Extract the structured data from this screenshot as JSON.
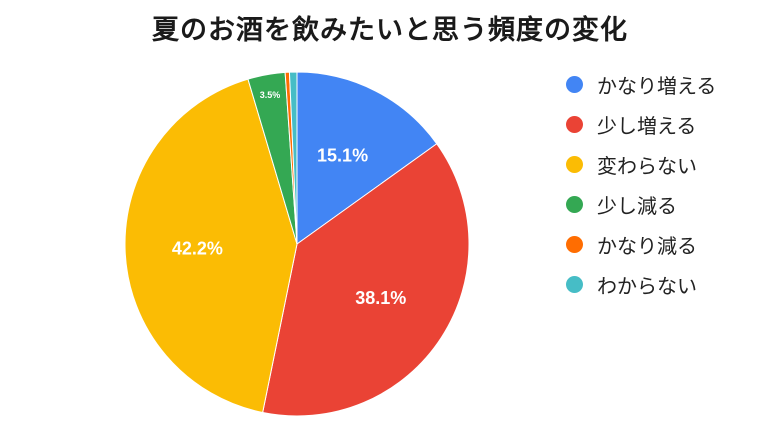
{
  "chart_data": {
    "type": "pie",
    "title": "夏のお酒を飲みたいと思う頻度の変化",
    "categories": [
      "かなり増える",
      "少し増える",
      "変わらない",
      "少し減る",
      "かなり減る",
      "わからない"
    ],
    "values": [
      15.1,
      38.1,
      42.2,
      3.5,
      0.4,
      0.7
    ],
    "data_labels": [
      "15.1%",
      "38.1%",
      "42.2%",
      "3.5%",
      "",
      ""
    ],
    "colors": [
      "#4285F4",
      "#EA4335",
      "#FBBC04",
      "#34A853",
      "#FF6D01",
      "#46BDC6"
    ],
    "start_angle": "12 o'clock",
    "direction": "clockwise",
    "legend_position": "right"
  }
}
